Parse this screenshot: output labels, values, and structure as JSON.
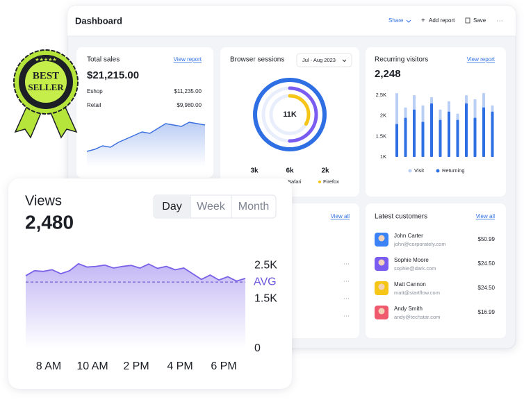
{
  "badge": {
    "line1": "BEST",
    "line2": "SELLER"
  },
  "dashboard": {
    "title": "Dashboard",
    "actions": [
      "Share",
      "Add report",
      "Save"
    ]
  },
  "total_sales": {
    "link": "View report",
    "amount": "$21,215.00",
    "rows": [
      [
        "Eshop",
        "$11,235.00"
      ],
      [
        "Retail",
        "$9,980.00"
      ]
    ]
  },
  "browser_sessions": {
    "period": "Jul - Aug 2023"
  },
  "recurring_visitors": {
    "link": "View report",
    "total": "2,248"
  },
  "orders_card": {
    "link": "View all"
  },
  "latest_customers": {
    "title": "Latest customers",
    "link": "View all",
    "rows": [
      {
        "name": "John Carter",
        "email": "john@corporately.com",
        "amount": "$50.99"
      },
      {
        "name": "Sophie Moore",
        "email": "sophie@dark.com",
        "amount": "$24.50"
      },
      {
        "name": "Matt Cannon",
        "email": "matt@startflow.com",
        "amount": "$24.50"
      },
      {
        "name": "Andy Smith",
        "email": "andy@techstar.com",
        "amount": "$16.99"
      }
    ]
  },
  "views": {
    "total": "2,480",
    "tabs": [
      {
        "label": "Day",
        "active": true
      },
      {
        "label": "Week",
        "active": false
      },
      {
        "label": "Month",
        "active": false
      }
    ]
  },
  "chart_data": [
    {
      "type": "area",
      "title": "Total sales",
      "color": "#3b6fe0",
      "values": [
        22,
        25,
        30,
        28,
        35,
        40,
        45,
        50,
        48,
        55,
        62,
        60,
        58,
        64,
        62,
        60
      ],
      "ylim": [
        0,
        100
      ]
    },
    {
      "type": "donut",
      "title": "Browser sessions",
      "center_label": "11K",
      "categories": [
        null,
        "Safari",
        "Firefox"
      ],
      "values": [
        3,
        6,
        2
      ],
      "value_labels": [
        "3k",
        "6k",
        "2k"
      ],
      "colors": [
        "#7b5cf0",
        "#2f6fe4",
        "#f5c518"
      ]
    },
    {
      "type": "bar",
      "title": "Recurring visitors",
      "legend": "bottom",
      "categories": [
        null,
        null,
        null,
        null,
        null,
        null,
        null,
        null,
        null,
        null,
        null,
        null
      ],
      "series": [
        {
          "name": "Visit",
          "color": "#b9cff6",
          "values": [
            2550,
            2200,
            2500,
            2250,
            2450,
            2150,
            2350,
            2050,
            2500,
            2400,
            2550,
            2250
          ]
        },
        {
          "name": "Returning",
          "color": "#2f6fe4",
          "values": [
            1800,
            1950,
            2150,
            1850,
            2300,
            1900,
            2100,
            1900,
            2300,
            1950,
            2200,
            2100
          ]
        }
      ],
      "ylim": [
        1000,
        2600
      ],
      "yticks": [
        {
          "value": 1000,
          "label": "1K"
        },
        {
          "value": 1500,
          "label": "1.5K"
        },
        {
          "value": 2000,
          "label": "2K"
        },
        {
          "value": 2500,
          "label": "2.5K"
        }
      ]
    },
    {
      "type": "area",
      "title": "Views",
      "color": "#7b61e8",
      "xtick_labels": [
        "8 AM",
        "10 AM",
        "2 PM",
        "4 PM",
        "6 PM"
      ],
      "values": [
        2190,
        2340,
        2320,
        2370,
        2250,
        2340,
        2550,
        2450,
        2470,
        2510,
        2420,
        2470,
        2500,
        2420,
        2540,
        2410,
        2470,
        2370,
        2420,
        2250,
        2080,
        2210,
        2060,
        2160,
        2030,
        2110
      ],
      "ylim": [
        0,
        2900
      ],
      "yticks": [
        0,
        {
          "value": 1500,
          "label": "1.5K"
        },
        {
          "value": 2500,
          "label": "2.5K"
        }
      ],
      "avg": {
        "label": "AVG",
        "value": 2000
      }
    }
  ]
}
